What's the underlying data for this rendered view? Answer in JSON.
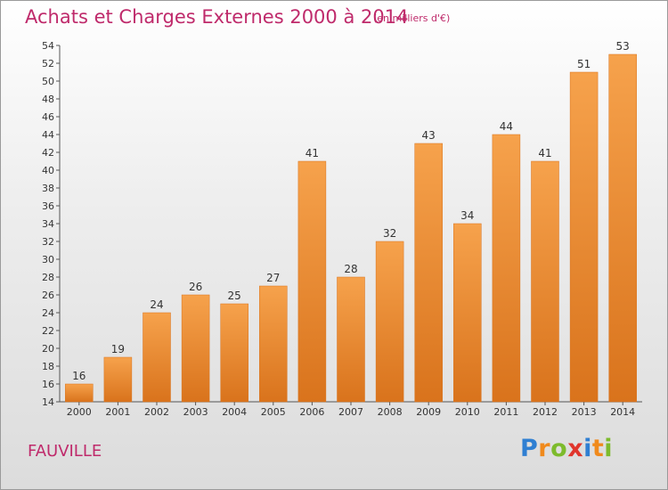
{
  "title": "Achats et Charges Externes 2000 à 2014",
  "subtitle": "(en milliers d'€)",
  "commune": "FAUVILLE",
  "logo": {
    "text": "Proxiti",
    "letters": [
      {
        "ch": "P",
        "color": "#2f7fd2"
      },
      {
        "ch": "r",
        "color": "#f08a1c"
      },
      {
        "ch": "o",
        "color": "#7dbb2c"
      },
      {
        "ch": "x",
        "color": "#e0352c"
      },
      {
        "ch": "i",
        "color": "#2f7fd2"
      },
      {
        "ch": "t",
        "color": "#f08a1c"
      },
      {
        "ch": "i",
        "color": "#7dbb2c"
      }
    ]
  },
  "colors": {
    "bar_light": "#f6a24c",
    "bar_dark": "#d9731c",
    "title": "#bf2a6b"
  },
  "chart_data": {
    "type": "bar",
    "categories": [
      "2000",
      "2001",
      "2002",
      "2003",
      "2004",
      "2005",
      "2006",
      "2007",
      "2008",
      "2009",
      "2010",
      "2011",
      "2012",
      "2013",
      "2014"
    ],
    "values": [
      16,
      19,
      24,
      26,
      25,
      27,
      41,
      28,
      32,
      43,
      34,
      44,
      41,
      51,
      53
    ],
    "title": "Achats et Charges Externes 2000 à 2014",
    "unit": "(en milliers d'€)",
    "ylim": [
      14,
      54
    ],
    "yticks": [
      14,
      16,
      18,
      20,
      22,
      24,
      26,
      28,
      30,
      32,
      34,
      36,
      38,
      40,
      42,
      44,
      46,
      48,
      50,
      52,
      54
    ],
    "grid": false,
    "data_labels": true
  }
}
